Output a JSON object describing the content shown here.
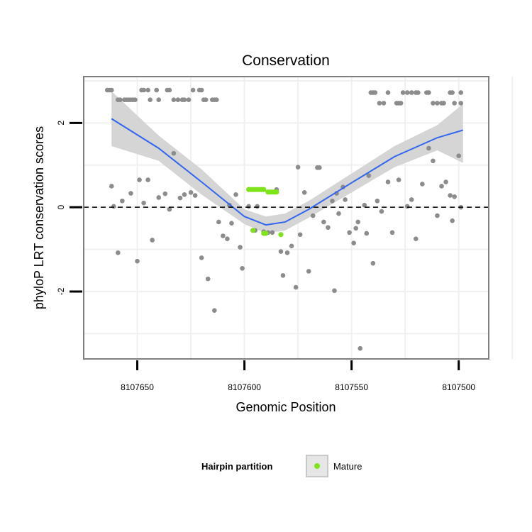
{
  "chart_data": {
    "type": "scatter",
    "title": "Conservation",
    "xlabel": "Genomic Position",
    "ylabel": "phyloP LRT conservation scores",
    "x_reversed": true,
    "xlim": [
      8107675,
      8107486
    ],
    "ylim": [
      -3.6,
      3.1
    ],
    "x_ticks": [
      8107650,
      8107600,
      8107550,
      8107500
    ],
    "x_tick_labels": [
      "8107650",
      "8107600",
      "8107550",
      "8107500"
    ],
    "y_ticks": [
      -2,
      0,
      2
    ],
    "y_tick_labels": [
      "-2",
      "0",
      "2"
    ],
    "grid": true,
    "reference_line": {
      "y": 0,
      "style": "dashed"
    },
    "legend": {
      "title": "Hairpin partition",
      "position": "bottom",
      "entries": [
        {
          "label": "Mature",
          "color": "#7fe31c"
        }
      ]
    },
    "colors": {
      "points": "#8c8c8c",
      "mature": "#7fe31c",
      "smooth": "#3366ee",
      "band": "#d3d3d3",
      "panel_border": "#7f7f7f"
    },
    "smooth": {
      "x": [
        8107662,
        8107640,
        8107620,
        8107600,
        8107590,
        8107581,
        8107570,
        8107550,
        8107530,
        8107510,
        8107498
      ],
      "y": [
        2.1,
        1.4,
        0.6,
        -0.22,
        -0.42,
        -0.35,
        -0.05,
        0.58,
        1.2,
        1.65,
        1.83
      ],
      "lower": [
        1.45,
        1.1,
        0.3,
        -0.4,
        -0.62,
        -0.55,
        -0.25,
        0.35,
        0.95,
        1.35,
        1.05
      ],
      "upper": [
        2.75,
        1.7,
        0.9,
        -0.05,
        -0.22,
        -0.15,
        0.15,
        0.8,
        1.45,
        1.95,
        2.45
      ]
    },
    "series": [
      {
        "name": "Mature",
        "x": [
          8107598,
          8107597,
          8107596,
          8107595,
          8107594,
          8107593,
          8107592,
          8107591,
          8107589,
          8107588,
          8107587,
          8107586,
          8107585,
          8107596,
          8107591,
          8107590,
          8107583
        ],
        "y": [
          0.42,
          0.42,
          0.42,
          0.42,
          0.42,
          0.42,
          0.42,
          0.42,
          0.36,
          0.36,
          0.36,
          0.36,
          0.36,
          -0.55,
          -0.62,
          -0.62,
          -0.65
        ]
      },
      {
        "name": "",
        "x": [
          8107664,
          8107663,
          8107662,
          8107659,
          8107658,
          8107656,
          8107655,
          8107654,
          8107653,
          8107652,
          8107651,
          8107648,
          8107647,
          8107645,
          8107644,
          8107641,
          8107640,
          8107636,
          8107635,
          8107633,
          8107631,
          8107629,
          8107628,
          8107626,
          8107624,
          8107621,
          8107620,
          8107619,
          8107618,
          8107615,
          8107614,
          8107613,
          8107541,
          8107540,
          8107539,
          8107537,
          8107535,
          8107533,
          8107529,
          8107528,
          8107527,
          8107526,
          8107524,
          8107522,
          8107520,
          8107519,
          8107515,
          8107514,
          8107512,
          8107510,
          8107508,
          8107507,
          8107504,
          8107503,
          8107502,
          8107499,
          8107499,
          8107662,
          8107661,
          8107659,
          8107657,
          8107653,
          8107650,
          8107649,
          8107647,
          8107645,
          8107643,
          8107640,
          8107637,
          8107635,
          8107633,
          8107630,
          8107628,
          8107625,
          8107623,
          8107620,
          8107617,
          8107614,
          8107612,
          8107610,
          8107608,
          8107607,
          8107606,
          8107604,
          8107602,
          8107601,
          8107598,
          8107595,
          8107594,
          8107591,
          8107589,
          8107587,
          8107585,
          8107583,
          8107582,
          8107580,
          8107578,
          8107576,
          8107575,
          8107574,
          8107572,
          8107570,
          8107568,
          8107566,
          8107565,
          8107563,
          8107561,
          8107559,
          8107558,
          8107557,
          8107556,
          8107554,
          8107553,
          8107551,
          8107549,
          8107548,
          8107547,
          8107546,
          8107544,
          8107543,
          8107542,
          8107540,
          8107538,
          8107536,
          8107533,
          8107531,
          8107528,
          8107524,
          8107522,
          8107520,
          8107517,
          8107514,
          8107512,
          8107510,
          8107508,
          8107506,
          8107504,
          8107503,
          8107502,
          8107500,
          8107499
        ],
        "y": [
          2.78,
          2.78,
          2.78,
          2.55,
          2.55,
          2.55,
          2.55,
          2.55,
          2.55,
          2.55,
          2.55,
          2.78,
          2.78,
          2.78,
          2.55,
          2.78,
          2.55,
          2.78,
          2.78,
          2.55,
          2.55,
          2.55,
          2.55,
          2.55,
          2.78,
          2.78,
          2.78,
          2.55,
          2.55,
          2.55,
          2.55,
          2.55,
          2.72,
          2.72,
          2.72,
          2.47,
          2.47,
          2.72,
          2.47,
          2.47,
          2.47,
          2.72,
          2.72,
          2.72,
          2.72,
          2.72,
          2.72,
          2.72,
          2.47,
          2.47,
          2.47,
          2.47,
          2.72,
          2.72,
          2.47,
          2.72,
          2.47,
          0.5,
          0.02,
          -1.08,
          0.15,
          0.33,
          -1.28,
          0.65,
          0.1,
          0.65,
          -0.78,
          0.23,
          0.32,
          -0.05,
          1.28,
          0.22,
          0.3,
          0.35,
          0.28,
          -1.2,
          -1.7,
          -2.45,
          -0.35,
          -0.68,
          -0.75,
          0.05,
          -0.38,
          0.3,
          -0.95,
          -1.45,
          0.02,
          -0.55,
          0.02,
          -0.58,
          -0.6,
          -0.6,
          0.42,
          -1.05,
          -1.62,
          -1.08,
          -0.92,
          -1.9,
          0.95,
          -0.65,
          0.35,
          -1.52,
          -0.2,
          0.94,
          0.94,
          -0.35,
          -0.48,
          0.15,
          -1.98,
          0.33,
          -0.15,
          0.48,
          0.18,
          -0.6,
          -0.85,
          -0.5,
          -0.35,
          -3.35,
          0.05,
          -0.62,
          0.75,
          -1.33,
          0.15,
          -0.1,
          0.6,
          -0.6,
          0.65,
          0.02,
          0.18,
          -0.75,
          0.55,
          1.4,
          1.1,
          -0.2,
          0.5,
          0.6,
          0.28,
          -0.32,
          0.25,
          1.22,
          0.0
        ]
      }
    ]
  }
}
